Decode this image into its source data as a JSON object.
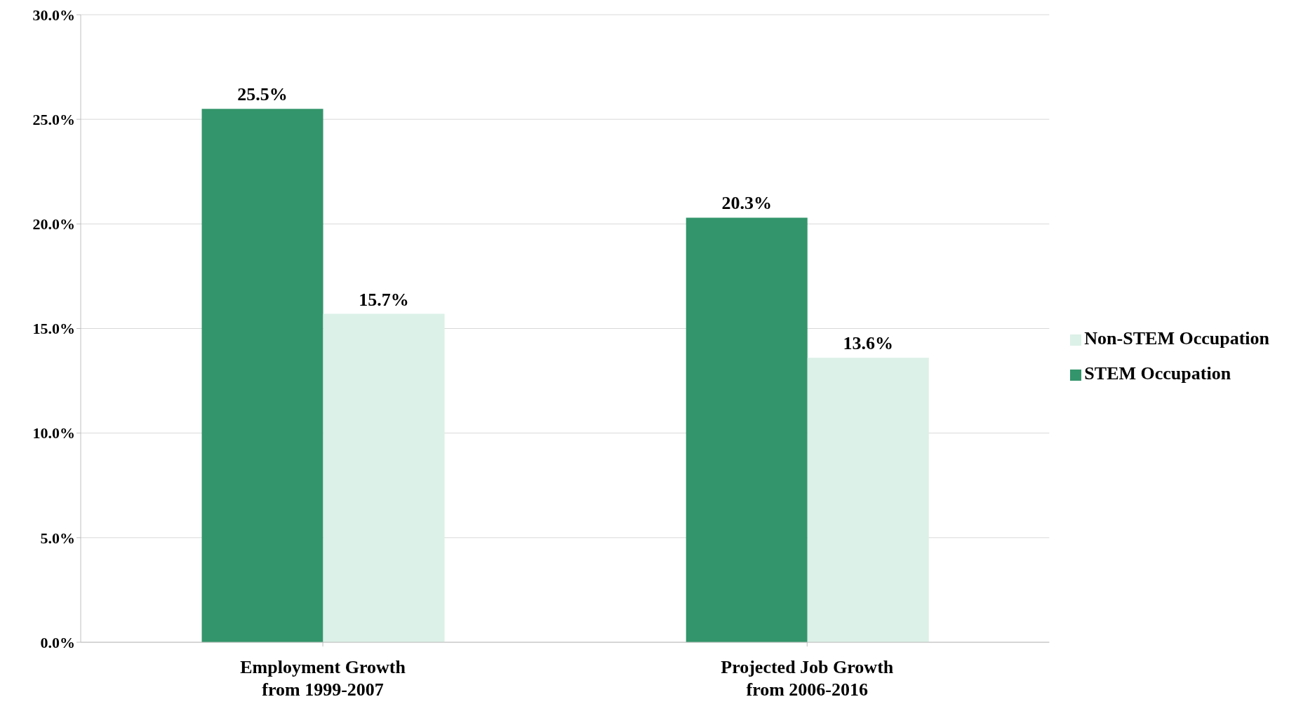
{
  "chart_data": {
    "type": "bar",
    "categories": [
      "Employment Growth\nfrom 1999-2007",
      "Projected Job Growth\nfrom 2006-2016"
    ],
    "series": [
      {
        "name": "STEM Occupation",
        "color": "#33956b",
        "values": [
          25.5,
          20.3
        ],
        "value_labels": [
          "25.5%",
          "20.3%"
        ]
      },
      {
        "name": "Non-STEM Occupation",
        "color": "#dcf1e7",
        "values": [
          15.7,
          13.6
        ],
        "value_labels": [
          "15.7%",
          "13.6%"
        ]
      }
    ],
    "ylim": [
      0,
      30
    ],
    "yticks": [
      {
        "value": 0,
        "label": "0.0%"
      },
      {
        "value": 5,
        "label": "5.0%"
      },
      {
        "value": 10,
        "label": "10.0%"
      },
      {
        "value": 15,
        "label": "15.0%"
      },
      {
        "value": 20,
        "label": "20.0%"
      },
      {
        "value": 25,
        "label": "25.0%"
      },
      {
        "value": 30,
        "label": "30.0%"
      }
    ],
    "grid": "y",
    "legend": "right"
  }
}
